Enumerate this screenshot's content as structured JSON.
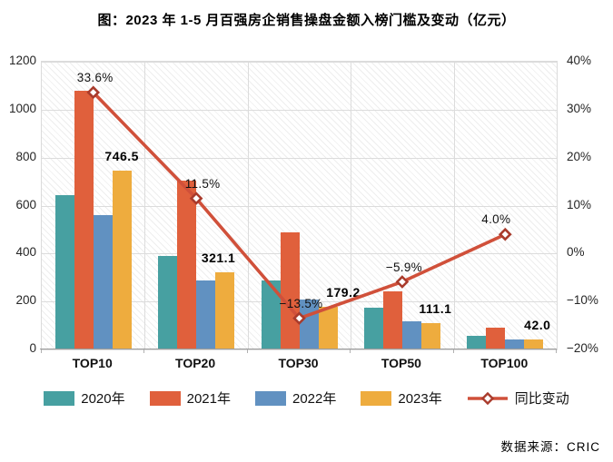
{
  "title": "图：2023 年 1-5 月百强房企销售操盘金额入榜门槛及变动（亿元）",
  "source": "数据来源：CRIC",
  "chart_data": {
    "type": "bar",
    "subtype": "grouped bars with overlay line (dual axis)",
    "categories": [
      "TOP10",
      "TOP20",
      "TOP30",
      "TOP50",
      "TOP100"
    ],
    "series": [
      {
        "name": "2020年",
        "type": "bar",
        "color": "#47A0A1",
        "values": [
          643,
          390,
          286,
          174,
          55
        ]
      },
      {
        "name": "2021年",
        "type": "bar",
        "color": "#E0603C",
        "values": [
          1079,
          705,
          489,
          241,
          91
        ]
      },
      {
        "name": "2022年",
        "type": "bar",
        "color": "#6191C1",
        "values": [
          559,
          288,
          207,
          118,
          40
        ]
      },
      {
        "name": "2023年",
        "type": "bar",
        "color": "#EEAC3E",
        "values": [
          746.5,
          321.1,
          179.2,
          111.1,
          42.0
        ],
        "labels": [
          "746.5",
          "321.1",
          "179.2",
          "111.1",
          "42.0"
        ]
      },
      {
        "name": "同比变动",
        "type": "line",
        "color": "#D0503A",
        "marker": "diamond",
        "marker_stroke": "#A93B2C",
        "values": [
          33.6,
          11.5,
          -13.5,
          -5.9,
          4.0
        ],
        "labels": [
          "33.6%",
          "11.5%",
          "−13.5%",
          "−5.9%",
          "4.0%"
        ]
      }
    ],
    "left_axis": {
      "label": "",
      "ticks": [
        1200,
        1000,
        800,
        600,
        400,
        200,
        0
      ],
      "range": [
        0,
        1200
      ]
    },
    "right_axis": {
      "label": "",
      "ticks": [
        "40%",
        "30%",
        "20%",
        "10%",
        "0%",
        "−10%",
        "−20%"
      ],
      "range": [
        -20,
        40
      ]
    },
    "grid": true,
    "plot_background": "diagonal-hatch",
    "legend_position": "bottom",
    "value_label_dx": [
      0,
      -7,
      17,
      5,
      4
    ],
    "pct_label_dx": [
      2,
      7,
      2,
      2,
      -10
    ]
  }
}
